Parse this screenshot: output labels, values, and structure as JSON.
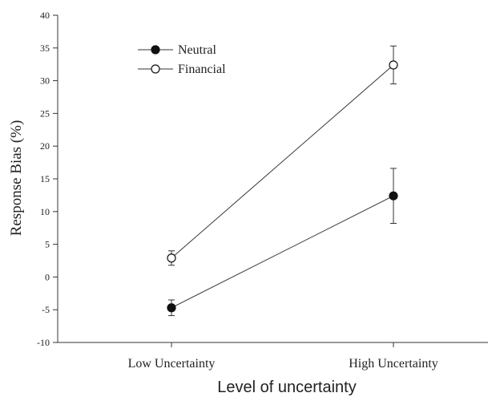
{
  "chart_data": {
    "type": "line",
    "title": "",
    "xlabel": "Level of uncertainty",
    "ylabel": "Response Bias (%)",
    "categories": [
      "Low Uncertainty",
      "High Uncertainty"
    ],
    "ylim": [
      -10,
      40
    ],
    "yticks": [
      -10,
      -5,
      0,
      5,
      10,
      15,
      20,
      25,
      30,
      35,
      40
    ],
    "grid": false,
    "legend_position": "top-left",
    "series": [
      {
        "name": "Neutral",
        "marker": "filled-circle",
        "values": [
          -4.7,
          12.4
        ],
        "error": [
          1.2,
          4.2
        ]
      },
      {
        "name": "Financial",
        "marker": "open-circle",
        "values": [
          2.9,
          32.4
        ],
        "error": [
          1.1,
          2.9
        ]
      }
    ]
  }
}
